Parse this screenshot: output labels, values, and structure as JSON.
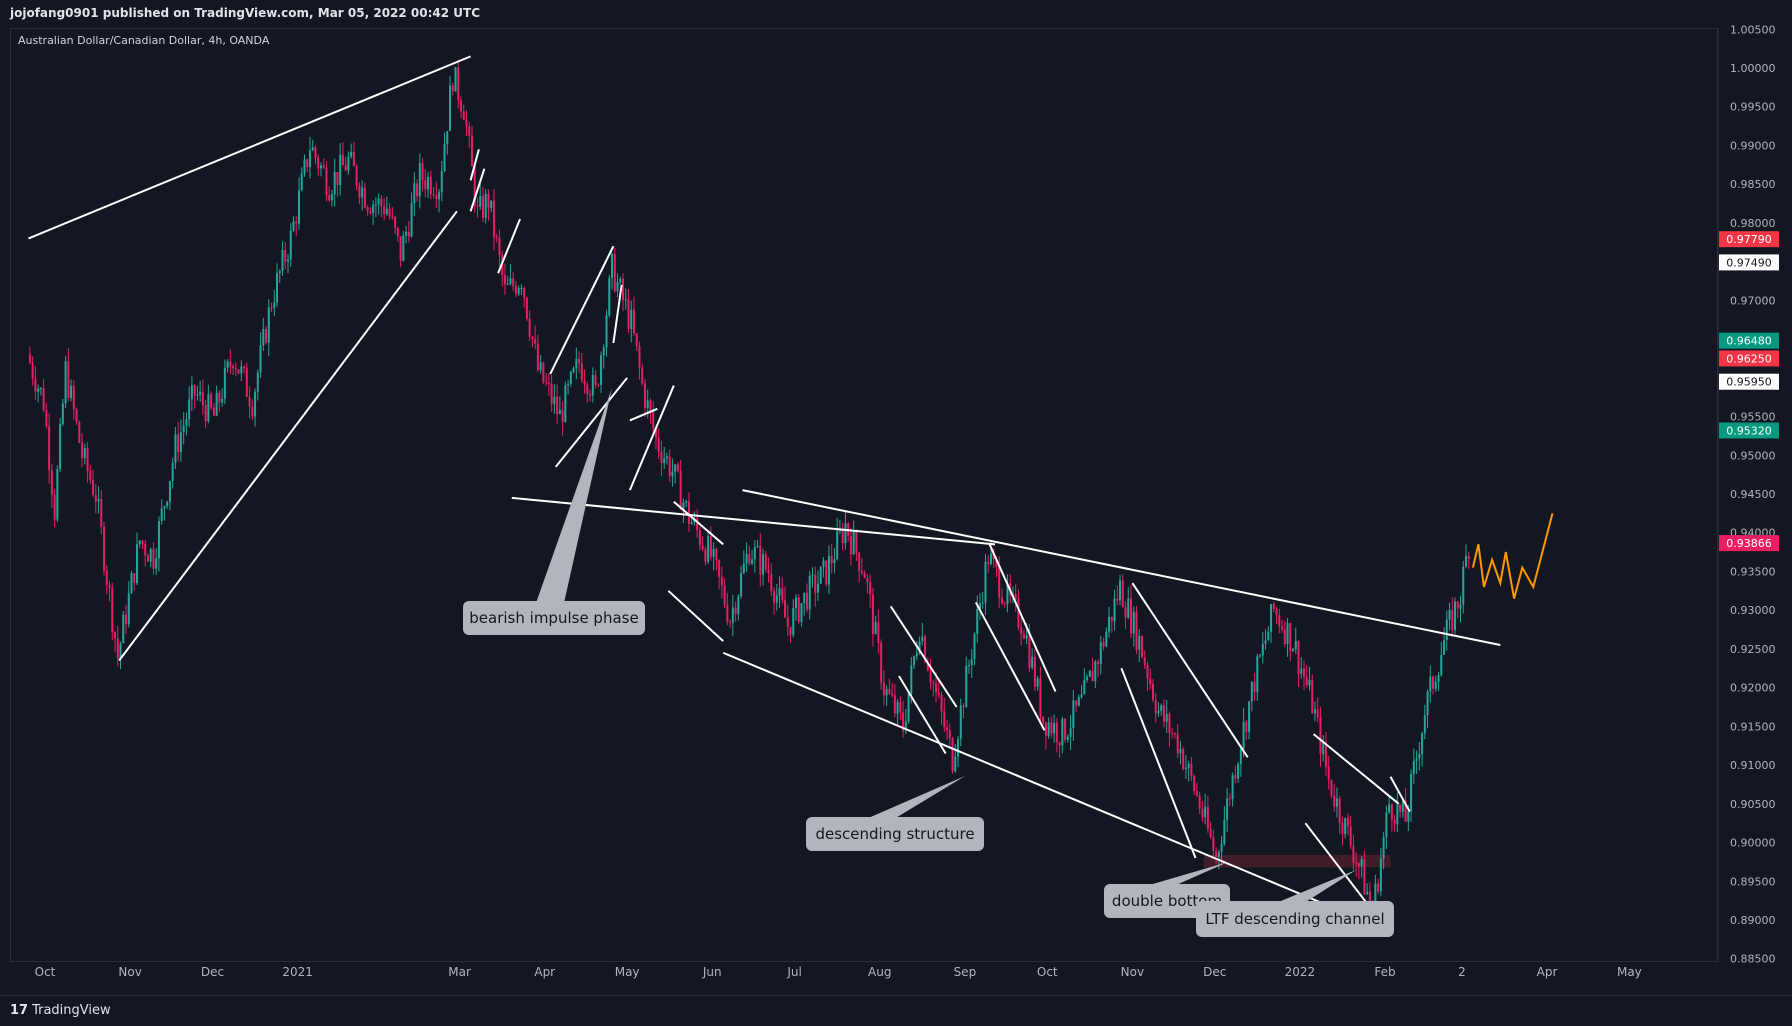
{
  "header": {
    "published": "jojofang0901 published on TradingView.com, Mar 05, 2022 00:42 UTC"
  },
  "symbol_label": "Australian Dollar/Canadian Dollar, 4h, OANDA",
  "footer": {
    "logo": "17",
    "brand": "TradingView"
  },
  "colors": {
    "background": "#131722",
    "up_candle": "#26a69a",
    "down_candle": "#e91e63",
    "trendline": "#ffffff",
    "projection": "#ff9800",
    "callout_bg": "#b2b5be",
    "support_zone": "#4a1e28"
  },
  "chart_data": {
    "type": "candlestick",
    "title": "Australian Dollar/Canadian Dollar, 4h, OANDA",
    "timeframe": "4h",
    "x_ticks": [
      "Oct",
      "Nov",
      "Dec",
      "2021",
      "Mar",
      "Apr",
      "May",
      "Jun",
      "Jul",
      "Aug",
      "Sep",
      "Oct",
      "Nov",
      "Dec",
      "2022",
      "Feb",
      "2",
      "Apr",
      "May"
    ],
    "y_ticks": [
      "1.00500",
      "1.00000",
      "0.99500",
      "0.99000",
      "0.98500",
      "0.98000",
      "0.97500",
      "0.97000",
      "0.96500",
      "0.96000",
      "0.95500",
      "0.95000",
      "0.94500",
      "0.94000",
      "0.93500",
      "0.93000",
      "0.92500",
      "0.92000",
      "0.91500",
      "0.91000",
      "0.90500",
      "0.90000",
      "0.89500",
      "0.89000",
      "0.88500"
    ],
    "ylim": [
      0.885,
      1.006
    ],
    "price_labels": [
      {
        "value": "0.97790",
        "color": "#f23645"
      },
      {
        "value": "0.97490",
        "color": "#ffffff"
      },
      {
        "value": "0.96480",
        "color": "#089981"
      },
      {
        "value": "0.96250",
        "color": "#f23645"
      },
      {
        "value": "0.95950",
        "color": "#ffffff"
      },
      {
        "value": "0.95320",
        "color": "#089981"
      },
      {
        "value": "0.93866",
        "color": "#e91e63"
      }
    ],
    "price_path": [
      [
        "2020-09-25",
        0.963
      ],
      [
        "2020-10-01",
        0.957
      ],
      [
        "2020-10-05",
        0.943
      ],
      [
        "2020-10-09",
        0.961
      ],
      [
        "2020-10-15",
        0.95
      ],
      [
        "2020-10-20",
        0.945
      ],
      [
        "2020-10-28",
        0.924
      ],
      [
        "2020-11-05",
        0.939
      ],
      [
        "2020-11-10",
        0.937
      ],
      [
        "2020-11-18",
        0.951
      ],
      [
        "2020-11-25",
        0.958
      ],
      [
        "2020-12-02",
        0.955
      ],
      [
        "2020-12-09",
        0.963
      ],
      [
        "2020-12-16",
        0.957
      ],
      [
        "2020-12-23",
        0.97
      ],
      [
        "2020-12-30",
        0.978
      ],
      [
        "2021-01-06",
        0.99
      ],
      [
        "2021-01-13",
        0.985
      ],
      [
        "2021-01-20",
        0.988
      ],
      [
        "2021-01-27",
        0.983
      ],
      [
        "2021-02-03",
        0.982
      ],
      [
        "2021-02-08",
        0.976
      ],
      [
        "2021-02-15",
        0.986
      ],
      [
        "2021-02-22",
        0.985
      ],
      [
        "2021-02-27",
        0.999
      ],
      [
        "2021-03-03",
        0.995
      ],
      [
        "2021-03-08",
        0.981
      ],
      [
        "2021-03-12",
        0.983
      ],
      [
        "2021-03-18",
        0.971
      ],
      [
        "2021-03-24",
        0.973
      ],
      [
        "2021-03-30",
        0.961
      ],
      [
        "2021-04-07",
        0.955
      ],
      [
        "2021-04-14",
        0.962
      ],
      [
        "2021-04-20",
        0.958
      ],
      [
        "2021-04-26",
        0.974
      ],
      [
        "2021-05-03",
        0.967
      ],
      [
        "2021-05-07",
        0.959
      ],
      [
        "2021-05-12",
        0.952
      ],
      [
        "2021-05-18",
        0.948
      ],
      [
        "2021-05-24",
        0.942
      ],
      [
        "2021-06-01",
        0.937
      ],
      [
        "2021-06-08",
        0.929
      ],
      [
        "2021-06-15",
        0.938
      ],
      [
        "2021-06-22",
        0.935
      ],
      [
        "2021-06-29",
        0.928
      ],
      [
        "2021-07-06",
        0.932
      ],
      [
        "2021-07-13",
        0.935
      ],
      [
        "2021-07-20",
        0.941
      ],
      [
        "2021-07-27",
        0.935
      ],
      [
        "2021-08-03",
        0.92
      ],
      [
        "2021-08-10",
        0.915
      ],
      [
        "2021-08-16",
        0.928
      ],
      [
        "2021-08-22",
        0.919
      ],
      [
        "2021-08-28",
        0.911
      ],
      [
        "2021-09-04",
        0.925
      ],
      [
        "2021-09-10",
        0.937
      ],
      [
        "2021-09-16",
        0.932
      ],
      [
        "2021-09-23",
        0.928
      ],
      [
        "2021-09-30",
        0.916
      ],
      [
        "2021-10-07",
        0.914
      ],
      [
        "2021-10-14",
        0.918
      ],
      [
        "2021-10-21",
        0.925
      ],
      [
        "2021-10-28",
        0.933
      ],
      [
        "2021-11-04",
        0.926
      ],
      [
        "2021-11-11",
        0.917
      ],
      [
        "2021-11-18",
        0.913
      ],
      [
        "2021-11-25",
        0.906
      ],
      [
        "2021-12-02",
        0.898
      ],
      [
        "2021-12-09",
        0.91
      ],
      [
        "2021-12-16",
        0.921
      ],
      [
        "2021-12-23",
        0.93
      ],
      [
        "2021-12-30",
        0.926
      ],
      [
        "2022-01-06",
        0.918
      ],
      [
        "2022-01-12",
        0.908
      ],
      [
        "2022-01-18",
        0.902
      ],
      [
        "2022-01-24",
        0.896
      ],
      [
        "2022-01-28",
        0.891
      ],
      [
        "2022-02-03",
        0.905
      ],
      [
        "2022-02-09",
        0.903
      ],
      [
        "2022-02-16",
        0.917
      ],
      [
        "2022-02-23",
        0.926
      ],
      [
        "2022-03-01",
        0.932
      ],
      [
        "2022-03-04",
        0.9387
      ]
    ],
    "annotations": [
      {
        "id": "impulse",
        "text": "bearish impulse phase"
      },
      {
        "id": "structure",
        "text": "descending structure"
      },
      {
        "id": "double",
        "text": "double bottom"
      },
      {
        "id": "ltf",
        "text": "LTF descending channel"
      }
    ],
    "support_zone": [
      0.8968,
      0.8984
    ],
    "grid": false,
    "legend": "none"
  }
}
